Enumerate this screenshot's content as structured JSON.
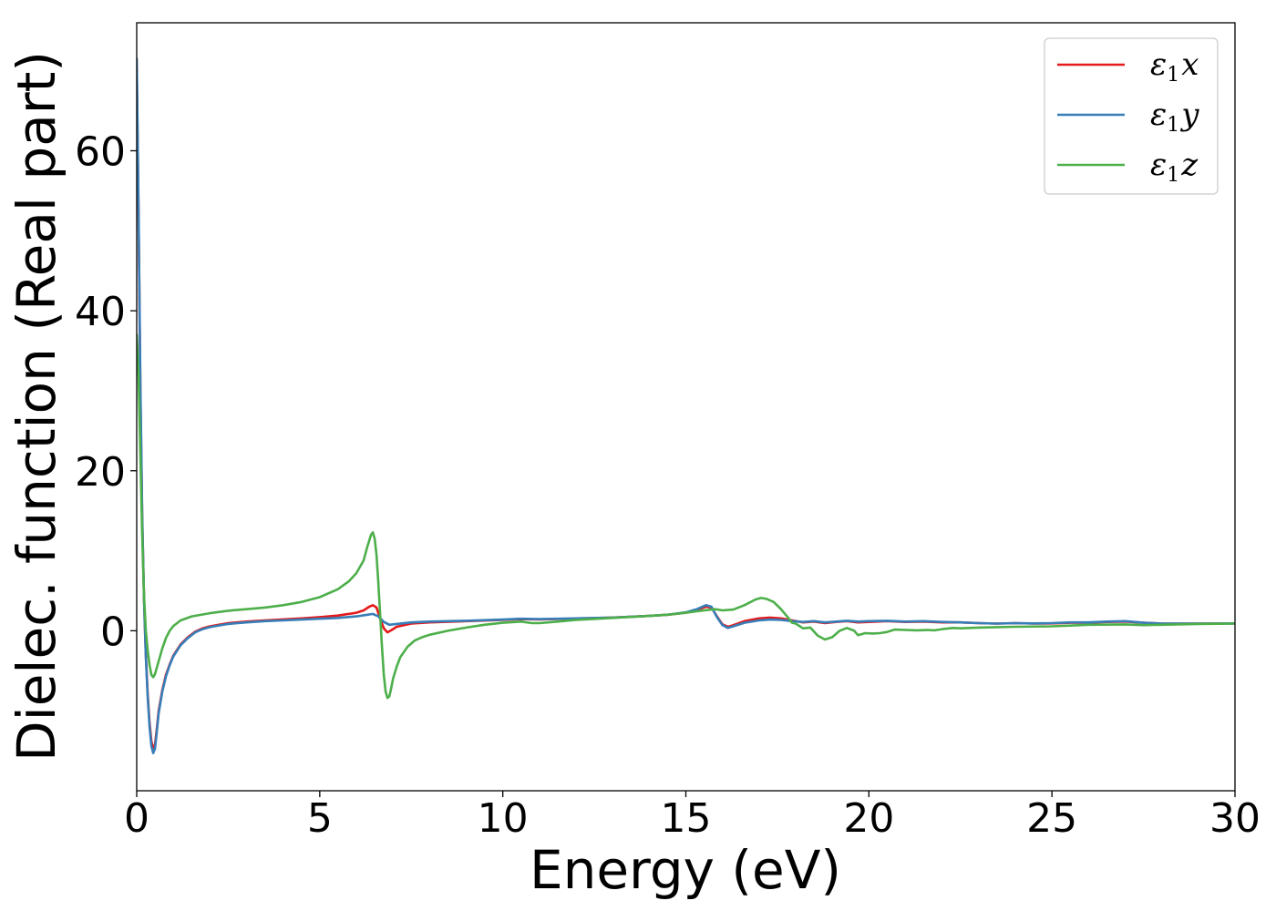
{
  "chart_data": {
    "type": "line",
    "title": "",
    "xlabel": "Energy (eV)",
    "ylabel": "Dielec. function (Real part)",
    "xlim": [
      0,
      30
    ],
    "ylim": [
      -20,
      76
    ],
    "xticks": [
      0,
      5,
      10,
      15,
      20,
      25,
      30
    ],
    "yticks": [
      0,
      20,
      40,
      60
    ],
    "grid": false,
    "legend_position": "top-right",
    "series": [
      {
        "name": "ε1x",
        "base": "ε",
        "sub": "1",
        "comp": "x",
        "color": "#e41a1c",
        "points": [
          [
            0.0,
            70.5
          ],
          [
            0.05,
            52
          ],
          [
            0.1,
            30
          ],
          [
            0.15,
            14
          ],
          [
            0.2,
            4
          ],
          [
            0.25,
            -3
          ],
          [
            0.3,
            -8
          ],
          [
            0.35,
            -11.5
          ],
          [
            0.4,
            -13.8
          ],
          [
            0.45,
            -14.8
          ],
          [
            0.5,
            -14.2
          ],
          [
            0.55,
            -12.2
          ],
          [
            0.6,
            -10
          ],
          [
            0.7,
            -7.4
          ],
          [
            0.8,
            -5.5
          ],
          [
            0.9,
            -4.2
          ],
          [
            1.0,
            -3.1
          ],
          [
            1.2,
            -1.7
          ],
          [
            1.4,
            -0.8
          ],
          [
            1.6,
            -0.1
          ],
          [
            1.8,
            0.3
          ],
          [
            2.0,
            0.55
          ],
          [
            2.5,
            0.95
          ],
          [
            3.0,
            1.15
          ],
          [
            3.5,
            1.3
          ],
          [
            4.0,
            1.42
          ],
          [
            4.5,
            1.55
          ],
          [
            5.0,
            1.7
          ],
          [
            5.5,
            1.9
          ],
          [
            6.0,
            2.25
          ],
          [
            6.2,
            2.55
          ],
          [
            6.35,
            3.0
          ],
          [
            6.45,
            3.2
          ],
          [
            6.55,
            2.9
          ],
          [
            6.65,
            1.5
          ],
          [
            6.75,
            0.3
          ],
          [
            6.85,
            -0.2
          ],
          [
            6.95,
            0.05
          ],
          [
            7.1,
            0.5
          ],
          [
            7.5,
            0.9
          ],
          [
            8.0,
            1.05
          ],
          [
            9.0,
            1.2
          ],
          [
            10.0,
            1.35
          ],
          [
            10.5,
            1.45
          ],
          [
            11.0,
            1.42
          ],
          [
            12.0,
            1.52
          ],
          [
            13.0,
            1.65
          ],
          [
            14.0,
            1.85
          ],
          [
            14.5,
            2.0
          ],
          [
            15.0,
            2.25
          ],
          [
            15.3,
            2.6
          ],
          [
            15.55,
            3.0
          ],
          [
            15.7,
            2.9
          ],
          [
            15.85,
            1.8
          ],
          [
            16.0,
            0.8
          ],
          [
            16.15,
            0.5
          ],
          [
            16.3,
            0.7
          ],
          [
            16.6,
            1.2
          ],
          [
            17.0,
            1.55
          ],
          [
            17.3,
            1.65
          ],
          [
            17.6,
            1.55
          ],
          [
            17.9,
            1.3
          ],
          [
            18.2,
            1.05
          ],
          [
            18.5,
            1.15
          ],
          [
            18.8,
            0.95
          ],
          [
            19.1,
            1.1
          ],
          [
            19.4,
            1.2
          ],
          [
            19.7,
            1.05
          ],
          [
            20.0,
            1.1
          ],
          [
            20.5,
            1.2
          ],
          [
            21.0,
            1.1
          ],
          [
            21.5,
            1.15
          ],
          [
            22.0,
            1.05
          ],
          [
            22.5,
            1.05
          ],
          [
            23.0,
            0.95
          ],
          [
            23.5,
            0.9
          ],
          [
            24.0,
            0.95
          ],
          [
            24.5,
            0.9
          ],
          [
            25.0,
            0.92
          ],
          [
            25.5,
            1.0
          ],
          [
            26.0,
            1.0
          ],
          [
            26.5,
            1.1
          ],
          [
            27.0,
            1.15
          ],
          [
            27.5,
            1.0
          ],
          [
            28.0,
            0.9
          ],
          [
            29.0,
            0.9
          ],
          [
            30.0,
            0.92
          ]
        ]
      },
      {
        "name": "ε1y",
        "base": "ε",
        "sub": "1",
        "comp": "y",
        "color": "#377eb8",
        "points": [
          [
            0.0,
            71.5
          ],
          [
            0.05,
            53
          ],
          [
            0.1,
            31
          ],
          [
            0.15,
            14.5
          ],
          [
            0.2,
            4
          ],
          [
            0.25,
            -3.2
          ],
          [
            0.3,
            -8.4
          ],
          [
            0.35,
            -12
          ],
          [
            0.4,
            -14.4
          ],
          [
            0.45,
            -15.3
          ],
          [
            0.5,
            -14.7
          ],
          [
            0.55,
            -12.6
          ],
          [
            0.6,
            -10.3
          ],
          [
            0.7,
            -7.6
          ],
          [
            0.8,
            -5.7
          ],
          [
            0.9,
            -4.3
          ],
          [
            1.0,
            -3.2
          ],
          [
            1.2,
            -1.8
          ],
          [
            1.4,
            -0.9
          ],
          [
            1.6,
            -0.2
          ],
          [
            1.8,
            0.2
          ],
          [
            2.0,
            0.45
          ],
          [
            2.5,
            0.85
          ],
          [
            3.0,
            1.05
          ],
          [
            3.5,
            1.2
          ],
          [
            4.0,
            1.3
          ],
          [
            4.5,
            1.4
          ],
          [
            5.0,
            1.5
          ],
          [
            5.5,
            1.6
          ],
          [
            6.0,
            1.8
          ],
          [
            6.3,
            2.0
          ],
          [
            6.45,
            2.1
          ],
          [
            6.6,
            1.8
          ],
          [
            6.75,
            1.1
          ],
          [
            6.9,
            0.75
          ],
          [
            7.1,
            0.85
          ],
          [
            7.5,
            1.05
          ],
          [
            8.0,
            1.15
          ],
          [
            9.0,
            1.25
          ],
          [
            10.0,
            1.4
          ],
          [
            10.5,
            1.5
          ],
          [
            11.0,
            1.45
          ],
          [
            12.0,
            1.55
          ],
          [
            13.0,
            1.65
          ],
          [
            14.0,
            1.85
          ],
          [
            14.5,
            2.0
          ],
          [
            15.0,
            2.3
          ],
          [
            15.3,
            2.7
          ],
          [
            15.55,
            3.2
          ],
          [
            15.7,
            3.0
          ],
          [
            15.85,
            1.7
          ],
          [
            16.0,
            0.7
          ],
          [
            16.15,
            0.35
          ],
          [
            16.3,
            0.55
          ],
          [
            16.6,
            1.0
          ],
          [
            17.0,
            1.3
          ],
          [
            17.3,
            1.4
          ],
          [
            17.6,
            1.35
          ],
          [
            17.9,
            1.2
          ],
          [
            18.2,
            1.1
          ],
          [
            18.5,
            1.2
          ],
          [
            18.8,
            1.05
          ],
          [
            19.1,
            1.15
          ],
          [
            19.4,
            1.25
          ],
          [
            19.7,
            1.15
          ],
          [
            20.0,
            1.2
          ],
          [
            20.5,
            1.25
          ],
          [
            21.0,
            1.15
          ],
          [
            21.5,
            1.2
          ],
          [
            22.0,
            1.1
          ],
          [
            22.5,
            1.05
          ],
          [
            23.0,
            0.95
          ],
          [
            23.5,
            0.9
          ],
          [
            24.0,
            0.95
          ],
          [
            24.5,
            0.92
          ],
          [
            25.0,
            0.95
          ],
          [
            25.5,
            1.05
          ],
          [
            26.0,
            1.05
          ],
          [
            26.5,
            1.15
          ],
          [
            27.0,
            1.2
          ],
          [
            27.5,
            1.0
          ],
          [
            28.0,
            0.9
          ],
          [
            29.0,
            0.9
          ],
          [
            30.0,
            0.92
          ]
        ]
      },
      {
        "name": "ε1z",
        "base": "ε",
        "sub": "1",
        "comp": "z",
        "color": "#4daf4a",
        "points": [
          [
            0.0,
            37
          ],
          [
            0.05,
            32
          ],
          [
            0.1,
            22
          ],
          [
            0.15,
            12
          ],
          [
            0.2,
            4.5
          ],
          [
            0.25,
            0
          ],
          [
            0.3,
            -2.5
          ],
          [
            0.35,
            -4.3
          ],
          [
            0.4,
            -5.5
          ],
          [
            0.45,
            -5.8
          ],
          [
            0.5,
            -5.4
          ],
          [
            0.6,
            -3.8
          ],
          [
            0.7,
            -2.2
          ],
          [
            0.8,
            -0.9
          ],
          [
            0.9,
            0
          ],
          [
            1.0,
            0.6
          ],
          [
            1.2,
            1.3
          ],
          [
            1.5,
            1.8
          ],
          [
            2.0,
            2.2
          ],
          [
            2.5,
            2.5
          ],
          [
            3.0,
            2.7
          ],
          [
            3.5,
            2.9
          ],
          [
            4.0,
            3.2
          ],
          [
            4.5,
            3.6
          ],
          [
            5.0,
            4.2
          ],
          [
            5.5,
            5.2
          ],
          [
            5.8,
            6.2
          ],
          [
            6.0,
            7.2
          ],
          [
            6.2,
            8.8
          ],
          [
            6.3,
            10.5
          ],
          [
            6.4,
            12.0
          ],
          [
            6.45,
            12.3
          ],
          [
            6.5,
            11.5
          ],
          [
            6.55,
            9.5
          ],
          [
            6.6,
            6.0
          ],
          [
            6.65,
            2.0
          ],
          [
            6.7,
            -2.0
          ],
          [
            6.75,
            -5.5
          ],
          [
            6.8,
            -7.6
          ],
          [
            6.85,
            -8.4
          ],
          [
            6.9,
            -8.2
          ],
          [
            6.95,
            -7.2
          ],
          [
            7.0,
            -6.0
          ],
          [
            7.1,
            -4.5
          ],
          [
            7.2,
            -3.3
          ],
          [
            7.4,
            -2.0
          ],
          [
            7.6,
            -1.2
          ],
          [
            7.8,
            -0.8
          ],
          [
            8.0,
            -0.5
          ],
          [
            8.5,
            0
          ],
          [
            9.0,
            0.4
          ],
          [
            9.5,
            0.75
          ],
          [
            10.0,
            1.0
          ],
          [
            10.5,
            1.15
          ],
          [
            10.8,
            0.95
          ],
          [
            11.0,
            0.95
          ],
          [
            11.5,
            1.15
          ],
          [
            12.0,
            1.35
          ],
          [
            13.0,
            1.6
          ],
          [
            14.0,
            1.85
          ],
          [
            14.5,
            2.0
          ],
          [
            15.0,
            2.25
          ],
          [
            15.5,
            2.55
          ],
          [
            15.8,
            2.7
          ],
          [
            16.0,
            2.55
          ],
          [
            16.3,
            2.65
          ],
          [
            16.6,
            3.2
          ],
          [
            16.9,
            3.9
          ],
          [
            17.05,
            4.1
          ],
          [
            17.2,
            4.0
          ],
          [
            17.4,
            3.6
          ],
          [
            17.6,
            2.7
          ],
          [
            17.8,
            1.6
          ],
          [
            17.9,
            1.0
          ],
          [
            18.0,
            0.9
          ],
          [
            18.2,
            0.3
          ],
          [
            18.4,
            0.4
          ],
          [
            18.6,
            -0.6
          ],
          [
            18.8,
            -1.1
          ],
          [
            19.0,
            -0.8
          ],
          [
            19.2,
            0.0
          ],
          [
            19.4,
            0.35
          ],
          [
            19.6,
            0.0
          ],
          [
            19.7,
            -0.55
          ],
          [
            19.9,
            -0.3
          ],
          [
            20.1,
            -0.35
          ],
          [
            20.3,
            -0.3
          ],
          [
            20.5,
            -0.15
          ],
          [
            20.7,
            0.15
          ],
          [
            21.0,
            0.1
          ],
          [
            21.3,
            0.05
          ],
          [
            21.6,
            0.1
          ],
          [
            21.8,
            0.05
          ],
          [
            22.0,
            0.2
          ],
          [
            22.3,
            0.35
          ],
          [
            22.5,
            0.3
          ],
          [
            23.0,
            0.4
          ],
          [
            23.5,
            0.45
          ],
          [
            24.0,
            0.5
          ],
          [
            25.0,
            0.55
          ],
          [
            25.5,
            0.65
          ],
          [
            26.0,
            0.75
          ],
          [
            27.0,
            0.8
          ],
          [
            27.5,
            0.7
          ],
          [
            28.0,
            0.75
          ],
          [
            29.0,
            0.85
          ],
          [
            30.0,
            0.9
          ]
        ]
      }
    ]
  }
}
